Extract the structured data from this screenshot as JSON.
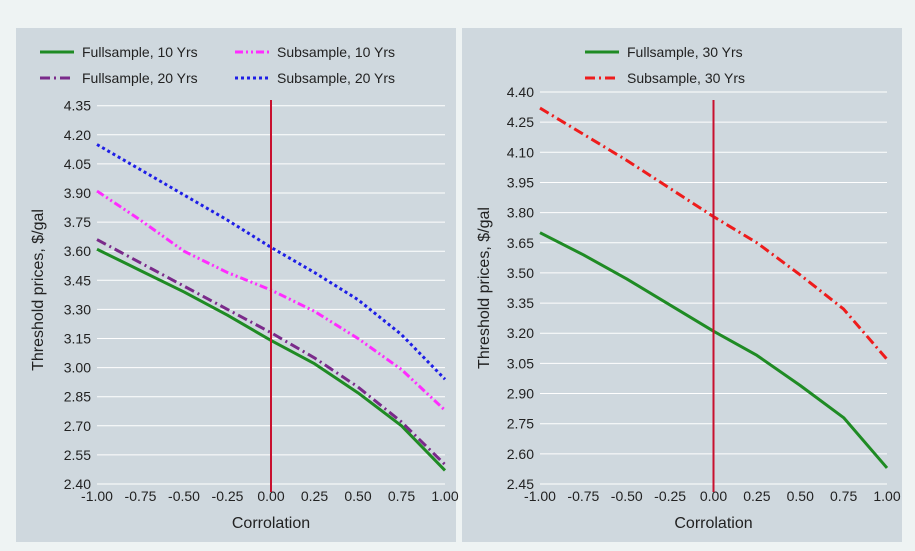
{
  "chart_data": [
    {
      "type": "line",
      "xlabel": "Corrolation",
      "ylabel": "Threshold prices, $/gal",
      "xlim": [
        -1.0,
        1.0
      ],
      "ylim": [
        2.4,
        4.4
      ],
      "xticks": [
        -1.0,
        -0.75,
        -0.5,
        -0.25,
        0.0,
        0.25,
        0.5,
        0.75,
        1.0
      ],
      "xtick_labels": [
        "-1.00",
        "-0.75",
        "-0.50",
        "-0.25",
        "0.00",
        "0.25",
        "0.50",
        "0.75",
        "1.00"
      ],
      "yticks": [
        2.4,
        2.55,
        2.7,
        2.85,
        3.0,
        3.15,
        3.3,
        3.45,
        3.6,
        3.75,
        3.9,
        4.05,
        4.2,
        4.35
      ],
      "ytick_labels": [
        "2.40",
        "2.55",
        "2.70",
        "2.85",
        "3.00",
        "3.15",
        "3.30",
        "3.45",
        "3.60",
        "3.75",
        "3.90",
        "4.05",
        "4.20",
        "4.35"
      ],
      "grid": true,
      "vline_x": 0.0,
      "vline_color": "#c8102e",
      "legend_position": "top",
      "x": [
        -1.0,
        -0.75,
        -0.5,
        -0.25,
        0.0,
        0.25,
        0.5,
        0.75,
        1.0
      ],
      "series": [
        {
          "name": "Fullsample, 10 Yrs",
          "color": "#1f8b24",
          "dash": "solid",
          "values": [
            3.61,
            3.5,
            3.39,
            3.27,
            3.14,
            3.02,
            2.87,
            2.7,
            2.47
          ]
        },
        {
          "name": "Subsample, 10 Yrs",
          "color": "#ff2cff",
          "dash": "dash-dot-dot",
          "values": [
            3.91,
            3.76,
            3.6,
            3.49,
            3.4,
            3.29,
            3.15,
            2.99,
            2.78
          ]
        },
        {
          "name": "Fullsample, 20 Yrs",
          "color": "#7a2a8a",
          "dash": "dash-dot",
          "values": [
            3.66,
            3.54,
            3.42,
            3.3,
            3.18,
            3.05,
            2.9,
            2.72,
            2.5
          ]
        },
        {
          "name": "Subsample, 20 Yrs",
          "color": "#1e1ee6",
          "dash": "dot",
          "values": [
            4.15,
            4.02,
            3.89,
            3.76,
            3.62,
            3.49,
            3.35,
            3.17,
            2.94
          ]
        }
      ]
    },
    {
      "type": "line",
      "xlabel": "Corrolation",
      "ylabel": "Threshold prices, $/gal",
      "xlim": [
        -1.0,
        1.0
      ],
      "ylim": [
        2.45,
        4.4
      ],
      "xticks": [
        -1.0,
        -0.75,
        -0.5,
        -0.25,
        0.0,
        0.25,
        0.5,
        0.75,
        1.0
      ],
      "xtick_labels": [
        "-1.00",
        "-0.75",
        "-0.50",
        "-0.25",
        "0.00",
        "0.25",
        "0.50",
        "0.75",
        "1.00"
      ],
      "yticks": [
        2.45,
        2.6,
        2.75,
        2.9,
        3.05,
        3.2,
        3.35,
        3.5,
        3.65,
        3.8,
        3.95,
        4.1,
        4.25,
        4.4
      ],
      "ytick_labels": [
        "2.45",
        "2.60",
        "2.75",
        "2.90",
        "3.05",
        "3.20",
        "3.35",
        "3.50",
        "3.65",
        "3.80",
        "3.95",
        "4.10",
        "4.25",
        "4.40"
      ],
      "grid": true,
      "vline_x": 0.0,
      "vline_color": "#c8102e",
      "legend_position": "top",
      "x": [
        -1.0,
        -0.75,
        -0.5,
        -0.25,
        0.0,
        0.25,
        0.5,
        0.75,
        1.0
      ],
      "series": [
        {
          "name": "Fullsample, 30 Yrs",
          "color": "#1f8b24",
          "dash": "solid",
          "values": [
            3.7,
            3.59,
            3.47,
            3.34,
            3.21,
            3.09,
            2.94,
            2.78,
            2.53
          ]
        },
        {
          "name": "Subsample, 30 Yrs",
          "color": "#ee1c1c",
          "dash": "dash-dot",
          "values": [
            4.32,
            4.19,
            4.06,
            3.92,
            3.78,
            3.65,
            3.49,
            3.32,
            3.07
          ]
        }
      ]
    }
  ]
}
